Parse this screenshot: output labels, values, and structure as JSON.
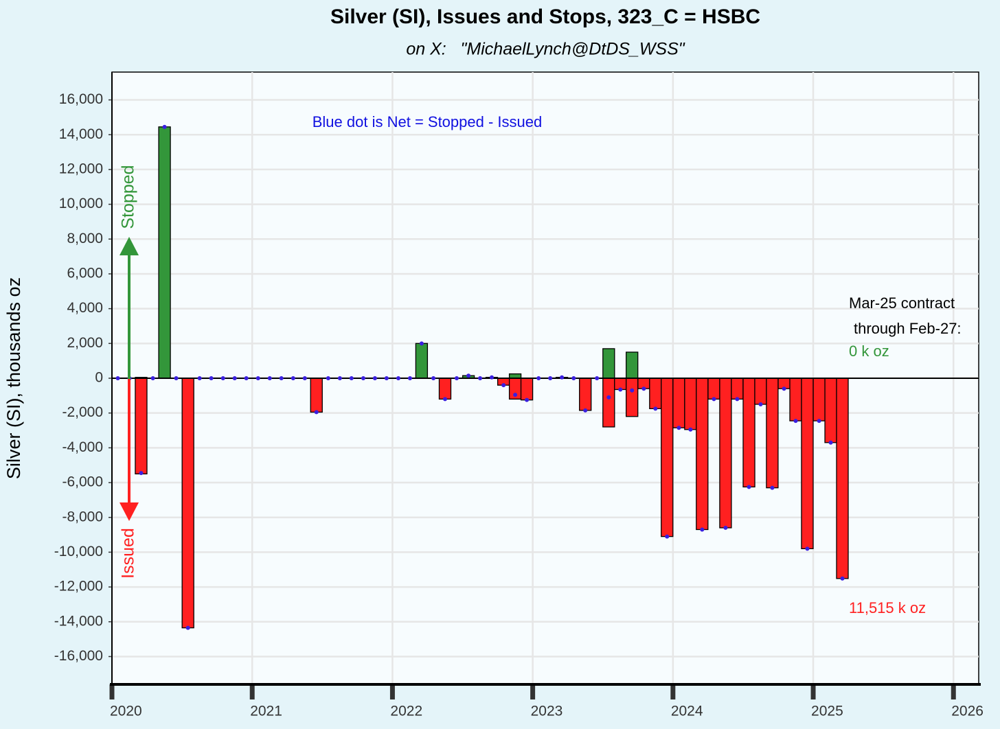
{
  "chart_data": {
    "type": "bar",
    "title": "Silver (SI), Issues and Stops, 323_C = HSBC",
    "subtitle": "on X:   \"MichaelLynch@DtDS_WSS\"",
    "y_label": "Silver (SI), thousands oz",
    "annotations": [
      "Blue dot is Net = Stopped - Issued",
      "Mar-25 contract",
      "through Feb-27:",
      "0 k oz",
      "11,515 k oz"
    ],
    "x": [
      2020.042,
      2020.125,
      2020.208,
      2020.292,
      2020.375,
      2020.458,
      2020.542,
      2020.625,
      2020.708,
      2020.792,
      2020.875,
      2020.958,
      2021.042,
      2021.125,
      2021.208,
      2021.292,
      2021.375,
      2021.458,
      2021.542,
      2021.625,
      2021.708,
      2021.792,
      2021.875,
      2021.958,
      2022.042,
      2022.125,
      2022.208,
      2022.292,
      2022.375,
      2022.458,
      2022.542,
      2022.625,
      2022.708,
      2022.792,
      2022.875,
      2022.958,
      2023.042,
      2023.125,
      2023.208,
      2023.292,
      2023.375,
      2023.458,
      2023.542,
      2023.625,
      2023.708,
      2023.792,
      2023.875,
      2023.958,
      2024.042,
      2024.125,
      2024.208,
      2024.292,
      2024.375,
      2024.458,
      2024.542,
      2024.625,
      2024.708,
      2024.792,
      2024.875,
      2024.958,
      2025.042,
      2025.125,
      2025.208
    ],
    "series": [
      {
        "name": "Stopped",
        "color": "#33963a",
        "values": [
          0,
          0,
          50,
          0,
          14450,
          0,
          0,
          0,
          0,
          0,
          0,
          0,
          0,
          0,
          0,
          0,
          0,
          0,
          0,
          0,
          0,
          0,
          0,
          0,
          0,
          0,
          2000,
          0,
          0,
          0,
          150,
          0,
          50,
          0,
          250,
          0,
          0,
          0,
          50,
          0,
          0,
          0,
          1700,
          0,
          1500,
          0,
          0,
          0,
          0,
          0,
          0,
          0,
          0,
          0,
          0,
          0,
          0,
          0,
          0,
          0,
          0,
          0,
          0
        ]
      },
      {
        "name": "Issued",
        "color": "#ff2020",
        "values": [
          0,
          0,
          -5500,
          0,
          0,
          0,
          -14350,
          0,
          0,
          0,
          0,
          0,
          0,
          0,
          0,
          0,
          0,
          -1950,
          0,
          0,
          0,
          0,
          0,
          0,
          0,
          0,
          0,
          0,
          -1200,
          0,
          0,
          0,
          0,
          -400,
          -1200,
          -1250,
          0,
          0,
          0,
          0,
          -1850,
          0,
          -2800,
          -650,
          -2200,
          -600,
          -1750,
          -9100,
          -2850,
          -2950,
          -8700,
          -1200,
          -8600,
          -1200,
          -6250,
          -1500,
          -6300,
          -600,
          -2450,
          -9800,
          -2450,
          -3700,
          -11515
        ]
      },
      {
        "color": "#3a1fe0",
        "values": [
          0,
          0,
          -5450,
          0,
          14450,
          0,
          -14350,
          0,
          0,
          0,
          0,
          0,
          0,
          0,
          0,
          0,
          0,
          -1950,
          0,
          0,
          0,
          0,
          0,
          0,
          0,
          0,
          2000,
          0,
          -1200,
          0,
          150,
          0,
          50,
          -400,
          -950,
          -1250,
          0,
          0,
          50,
          0,
          -1850,
          0,
          -1100,
          -650,
          -700,
          -600,
          -1750,
          -9100,
          -2850,
          -2950,
          -8700,
          -1200,
          -8600,
          -1200,
          -6250,
          -1500,
          -6300,
          -600,
          -2450,
          -9800,
          -2450,
          -3700,
          -11515
        ]
      }
    ],
    "xlim": [
      2020,
      2026.18
    ],
    "xticks": [
      2020,
      2021,
      2022,
      2023,
      2024,
      2025,
      2026
    ],
    "ylim": [
      -17600,
      17600
    ],
    "yticks": [
      {
        "value": -16000,
        "label": "-16,000"
      },
      {
        "value": -14000,
        "label": "-14,000"
      },
      {
        "value": -12000,
        "label": "-12,000"
      },
      {
        "value": -10000,
        "label": "-10,000"
      },
      {
        "value": -8000,
        "label": "-8,000"
      },
      {
        "value": -6000,
        "label": "-6,000"
      },
      {
        "value": -4000,
        "label": "-4,000"
      },
      {
        "value": -2000,
        "label": "-2,000"
      },
      0,
      {
        "value": 2000,
        "label": "2,000"
      },
      {
        "value": 4000,
        "label": "4,000"
      },
      {
        "value": 6000,
        "label": "6,000"
      },
      {
        "value": 8000,
        "label": "8,000"
      },
      {
        "value": 10000,
        "label": "10,000"
      },
      {
        "value": 12000,
        "label": "12,000"
      },
      {
        "value": 14000,
        "label": "14,000"
      },
      {
        "value": 16000,
        "label": "16,000"
      }
    ],
    "grid": true
  }
}
